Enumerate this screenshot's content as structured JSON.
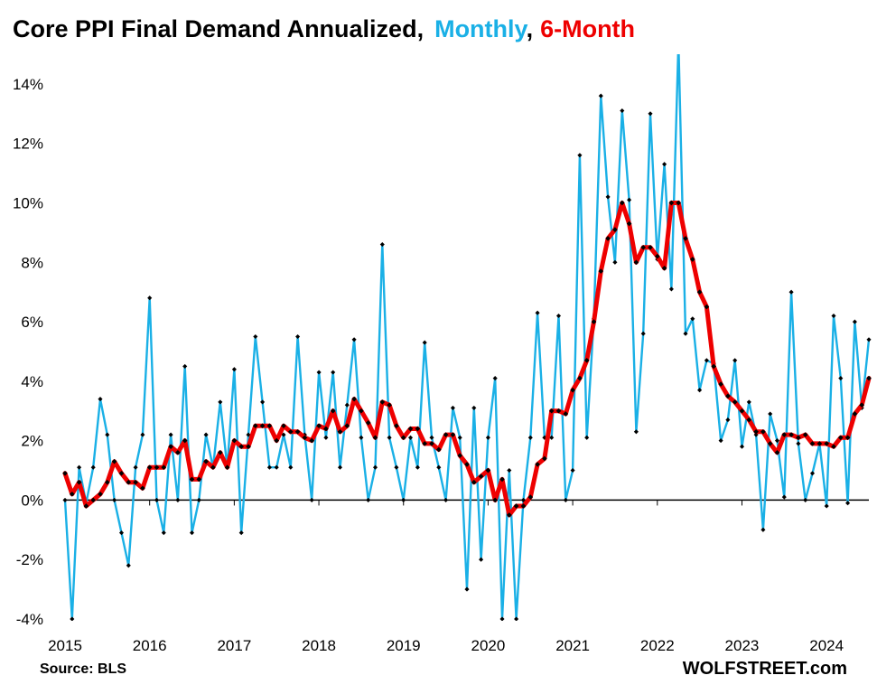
{
  "chart_data": {
    "type": "line",
    "title": {
      "main": "Core PPI Final Demand Annualized,",
      "series1": "Monthly",
      "separator": ",",
      "series2": "6-Month"
    },
    "source": "Source: BLS",
    "credit": "WOLFSTREET.com",
    "x_ticks": [
      "2015",
      "2016",
      "2017",
      "2018",
      "2019",
      "2020",
      "2021",
      "2022",
      "2023",
      "2024"
    ],
    "y_ticks": [
      "-4%",
      "-2%",
      "0%",
      "2%",
      "4%",
      "6%",
      "8%",
      "10%",
      "12%",
      "14%"
    ],
    "y_tick_values": [
      -4,
      -2,
      0,
      2,
      4,
      6,
      8,
      10,
      12,
      14
    ],
    "ylim": [
      -4,
      15
    ],
    "x_range": [
      "2015-01",
      "2024-07"
    ],
    "grid": false,
    "colors": {
      "monthly": "#1ab0e6",
      "six_month": "#ee0000",
      "marker": "#000000"
    },
    "series": [
      {
        "name": "Monthly",
        "start": "2015-01",
        "values": [
          0.0,
          -4.0,
          1.1,
          -0.1,
          1.1,
          3.4,
          2.2,
          0.0,
          -1.1,
          -2.2,
          1.1,
          2.2,
          6.8,
          0.0,
          -1.1,
          2.2,
          0.0,
          4.5,
          -1.1,
          0.0,
          2.2,
          1.1,
          3.3,
          1.1,
          4.4,
          -1.1,
          2.2,
          5.5,
          3.3,
          1.1,
          1.1,
          2.2,
          1.1,
          5.5,
          2.2,
          0.0,
          4.3,
          2.1,
          4.3,
          1.1,
          3.2,
          5.4,
          2.1,
          0.0,
          1.1,
          8.6,
          2.1,
          1.1,
          0.0,
          2.1,
          1.1,
          5.3,
          2.1,
          1.1,
          0.0,
          3.1,
          2.1,
          -3.0,
          3.1,
          -2.0,
          2.1,
          4.1,
          -4.0,
          1.0,
          -4.0,
          0.0,
          2.1,
          6.3,
          2.1,
          2.1,
          6.2,
          0.0,
          1.0,
          11.6,
          2.1,
          6.1,
          13.6,
          10.2,
          8.0,
          13.1,
          10.1,
          2.3,
          5.6,
          13.0,
          8.1,
          11.3,
          7.1,
          15.4,
          5.6,
          6.1,
          3.7,
          4.7,
          4.6,
          2.0,
          2.7,
          4.7,
          1.8,
          3.3,
          2.2,
          -1.0,
          2.9,
          2.0,
          0.1,
          7.0,
          1.9,
          0.0,
          0.9,
          1.9,
          -0.2,
          6.2,
          4.1,
          -0.1,
          6.0,
          3.1,
          5.4
        ]
      },
      {
        "name": "6-Month",
        "start": "2015-01",
        "values": [
          0.9,
          0.2,
          0.6,
          -0.2,
          0.0,
          0.2,
          0.6,
          1.3,
          0.9,
          0.6,
          0.6,
          0.4,
          1.1,
          1.1,
          1.1,
          1.8,
          1.6,
          2.0,
          0.7,
          0.7,
          1.3,
          1.1,
          1.6,
          1.1,
          2.0,
          1.8,
          1.8,
          2.5,
          2.5,
          2.5,
          2.0,
          2.5,
          2.3,
          2.3,
          2.1,
          2.0,
          2.5,
          2.4,
          3.0,
          2.3,
          2.5,
          3.4,
          3.0,
          2.6,
          2.1,
          3.3,
          3.2,
          2.5,
          2.1,
          2.4,
          2.4,
          1.9,
          1.9,
          1.7,
          2.2,
          2.2,
          1.5,
          1.2,
          0.6,
          0.8,
          1.0,
          0.0,
          0.7,
          -0.5,
          -0.2,
          -0.2,
          0.1,
          1.2,
          1.4,
          3.0,
          3.0,
          2.9,
          3.7,
          4.1,
          4.7,
          6.0,
          7.7,
          8.8,
          9.1,
          10.0,
          9.3,
          8.0,
          8.5,
          8.5,
          8.2,
          7.8,
          10.0,
          10.0,
          8.8,
          8.1,
          7.0,
          6.5,
          4.5,
          3.9,
          3.5,
          3.3,
          3.0,
          2.7,
          2.3,
          2.3,
          1.9,
          1.6,
          2.2,
          2.2,
          2.1,
          2.2,
          1.9,
          1.9,
          1.9,
          1.8,
          2.1,
          2.1,
          2.9,
          3.2,
          4.1
        ]
      }
    ]
  }
}
